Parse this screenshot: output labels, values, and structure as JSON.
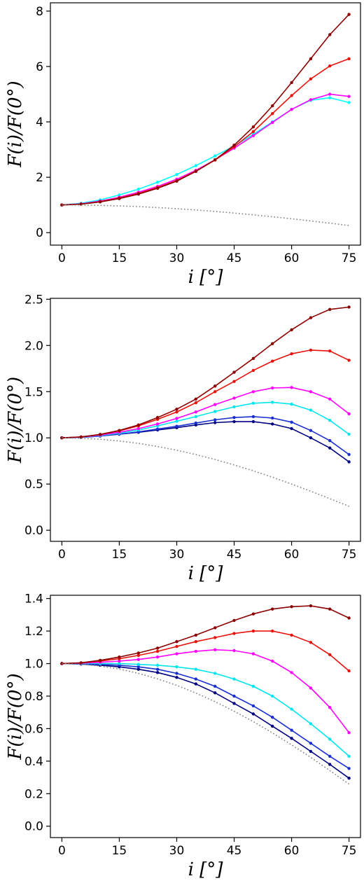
{
  "chart_data": [
    {
      "type": "line",
      "xlabel": "i [°]",
      "ylabel": "F(i)/F(0°)",
      "xlim": [
        -3,
        78
      ],
      "ylim": [
        -0.45,
        8.3
      ],
      "xticks": [
        0,
        15,
        30,
        45,
        60,
        75
      ],
      "yticks": [
        0,
        2,
        4,
        6,
        8
      ],
      "ytick_labels": [
        "0",
        "2",
        "4",
        "6",
        "8"
      ],
      "grid": false,
      "x": [
        0,
        5,
        10,
        15,
        20,
        25,
        30,
        35,
        40,
        45,
        50,
        55,
        60,
        65,
        70,
        75
      ],
      "series": [
        {
          "color": "#00ffff",
          "style": "solid",
          "values": [
            1.0,
            1.06,
            1.18,
            1.36,
            1.57,
            1.82,
            2.1,
            2.42,
            2.77,
            3.13,
            3.55,
            4.0,
            4.45,
            4.78,
            4.87,
            4.7
          ]
        },
        {
          "color": "#ff00ff",
          "style": "solid",
          "values": [
            1.0,
            1.04,
            1.14,
            1.28,
            1.46,
            1.67,
            1.93,
            2.25,
            2.63,
            3.05,
            3.5,
            3.98,
            4.45,
            4.8,
            5.0,
            4.92
          ]
        },
        {
          "color": "#e8120c",
          "style": "solid",
          "values": [
            1.0,
            1.03,
            1.12,
            1.25,
            1.42,
            1.63,
            1.88,
            2.22,
            2.62,
            3.1,
            3.65,
            4.3,
            4.95,
            5.55,
            6.02,
            6.28
          ]
        },
        {
          "color": "#8b0000",
          "style": "solid",
          "values": [
            1.0,
            1.03,
            1.11,
            1.23,
            1.39,
            1.6,
            1.86,
            2.21,
            2.63,
            3.16,
            3.82,
            4.58,
            5.42,
            6.28,
            7.15,
            7.88
          ]
        },
        {
          "color": "#808080",
          "style": "dotted",
          "values": [
            1.0,
            0.996,
            0.985,
            0.966,
            0.94,
            0.906,
            0.866,
            0.819,
            0.766,
            0.707,
            0.643,
            0.574,
            0.5,
            0.423,
            0.342,
            0.259
          ]
        }
      ]
    },
    {
      "type": "line",
      "xlabel": "i [°]",
      "ylabel": "F(i)/F(0°)",
      "xlim": [
        -3,
        78
      ],
      "ylim": [
        -0.12,
        2.51
      ],
      "xticks": [
        0,
        15,
        30,
        45,
        60,
        75
      ],
      "yticks": [
        0.0,
        0.5,
        1.0,
        1.5,
        2.0,
        2.5
      ],
      "ytick_labels": [
        "0.0",
        "0.5",
        "1.0",
        "1.5",
        "2.0",
        "2.5"
      ],
      "grid": false,
      "x": [
        0,
        5,
        10,
        15,
        20,
        25,
        30,
        35,
        40,
        45,
        50,
        55,
        60,
        65,
        70,
        75
      ],
      "series": [
        {
          "color": "#000080",
          "style": "solid",
          "values": [
            1.0,
            1.005,
            1.02,
            1.04,
            1.06,
            1.085,
            1.11,
            1.14,
            1.165,
            1.175,
            1.175,
            1.15,
            1.1,
            1.0,
            0.89,
            0.74
          ]
        },
        {
          "color": "#1a2fd0",
          "style": "solid",
          "values": [
            1.0,
            1.005,
            1.02,
            1.04,
            1.065,
            1.095,
            1.125,
            1.16,
            1.195,
            1.22,
            1.23,
            1.215,
            1.17,
            1.08,
            0.97,
            0.82
          ]
        },
        {
          "color": "#00e5ee",
          "style": "solid",
          "values": [
            1.0,
            1.006,
            1.025,
            1.05,
            1.085,
            1.13,
            1.18,
            1.23,
            1.285,
            1.335,
            1.375,
            1.385,
            1.365,
            1.3,
            1.19,
            1.04
          ]
        },
        {
          "color": "#ff00ff",
          "style": "solid",
          "values": [
            1.0,
            1.008,
            1.03,
            1.06,
            1.1,
            1.15,
            1.21,
            1.28,
            1.36,
            1.43,
            1.5,
            1.54,
            1.545,
            1.5,
            1.42,
            1.26
          ]
        },
        {
          "color": "#e8120c",
          "style": "solid",
          "values": [
            1.0,
            1.01,
            1.035,
            1.075,
            1.13,
            1.2,
            1.28,
            1.38,
            1.5,
            1.61,
            1.73,
            1.83,
            1.91,
            1.95,
            1.94,
            1.84
          ]
        },
        {
          "color": "#8b0000",
          "style": "solid",
          "values": [
            1.0,
            1.01,
            1.037,
            1.08,
            1.14,
            1.22,
            1.31,
            1.42,
            1.56,
            1.71,
            1.86,
            2.02,
            2.17,
            2.3,
            2.39,
            2.415
          ]
        },
        {
          "color": "#808080",
          "style": "dotted",
          "values": [
            1.0,
            0.996,
            0.985,
            0.966,
            0.94,
            0.906,
            0.866,
            0.819,
            0.766,
            0.707,
            0.643,
            0.574,
            0.5,
            0.423,
            0.342,
            0.259
          ]
        }
      ]
    },
    {
      "type": "line",
      "xlabel": "i [°]",
      "ylabel": "F(i)/F(0°)",
      "xlim": [
        -3,
        78
      ],
      "ylim": [
        -0.07,
        1.42
      ],
      "xticks": [
        0,
        15,
        30,
        45,
        60,
        75
      ],
      "yticks": [
        0.0,
        0.2,
        0.4,
        0.6,
        0.8,
        1.0,
        1.2,
        1.4
      ],
      "ytick_labels": [
        "0.0",
        "0.2",
        "0.4",
        "0.6",
        "0.8",
        "1.0",
        "1.2",
        "1.4"
      ],
      "grid": false,
      "x": [
        0,
        5,
        10,
        15,
        20,
        25,
        30,
        35,
        40,
        45,
        50,
        55,
        60,
        65,
        70,
        75
      ],
      "series": [
        {
          "color": "#000080",
          "style": "solid",
          "values": [
            1.0,
            0.997,
            0.99,
            0.98,
            0.965,
            0.945,
            0.915,
            0.875,
            0.82,
            0.755,
            0.69,
            0.615,
            0.54,
            0.46,
            0.38,
            0.295
          ]
        },
        {
          "color": "#1a2fd0",
          "style": "solid",
          "values": [
            1.0,
            0.998,
            0.995,
            0.99,
            0.98,
            0.965,
            0.94,
            0.905,
            0.86,
            0.8,
            0.74,
            0.67,
            0.59,
            0.51,
            0.43,
            0.355
          ]
        },
        {
          "color": "#00e5ee",
          "style": "solid",
          "values": [
            1.0,
            1.0,
            1.0,
            1.0,
            0.995,
            0.99,
            0.98,
            0.965,
            0.94,
            0.905,
            0.86,
            0.8,
            0.72,
            0.63,
            0.535,
            0.43
          ]
        },
        {
          "color": "#ff00ff",
          "style": "solid",
          "values": [
            1.0,
            1.002,
            1.008,
            1.015,
            1.025,
            1.04,
            1.06,
            1.075,
            1.085,
            1.08,
            1.06,
            1.015,
            0.945,
            0.85,
            0.73,
            0.575
          ]
        },
        {
          "color": "#e8120c",
          "style": "solid",
          "values": [
            1.0,
            1.004,
            1.015,
            1.03,
            1.05,
            1.075,
            1.105,
            1.135,
            1.16,
            1.185,
            1.2,
            1.2,
            1.175,
            1.13,
            1.055,
            0.955
          ]
        },
        {
          "color": "#8b0000",
          "style": "solid",
          "values": [
            1.0,
            1.005,
            1.02,
            1.04,
            1.065,
            1.095,
            1.135,
            1.175,
            1.22,
            1.265,
            1.305,
            1.335,
            1.35,
            1.355,
            1.335,
            1.28
          ]
        },
        {
          "color": "#808080",
          "style": "dotted",
          "values": [
            1.0,
            0.996,
            0.985,
            0.966,
            0.94,
            0.906,
            0.866,
            0.819,
            0.766,
            0.707,
            0.643,
            0.574,
            0.5,
            0.423,
            0.342,
            0.259
          ]
        }
      ]
    }
  ]
}
